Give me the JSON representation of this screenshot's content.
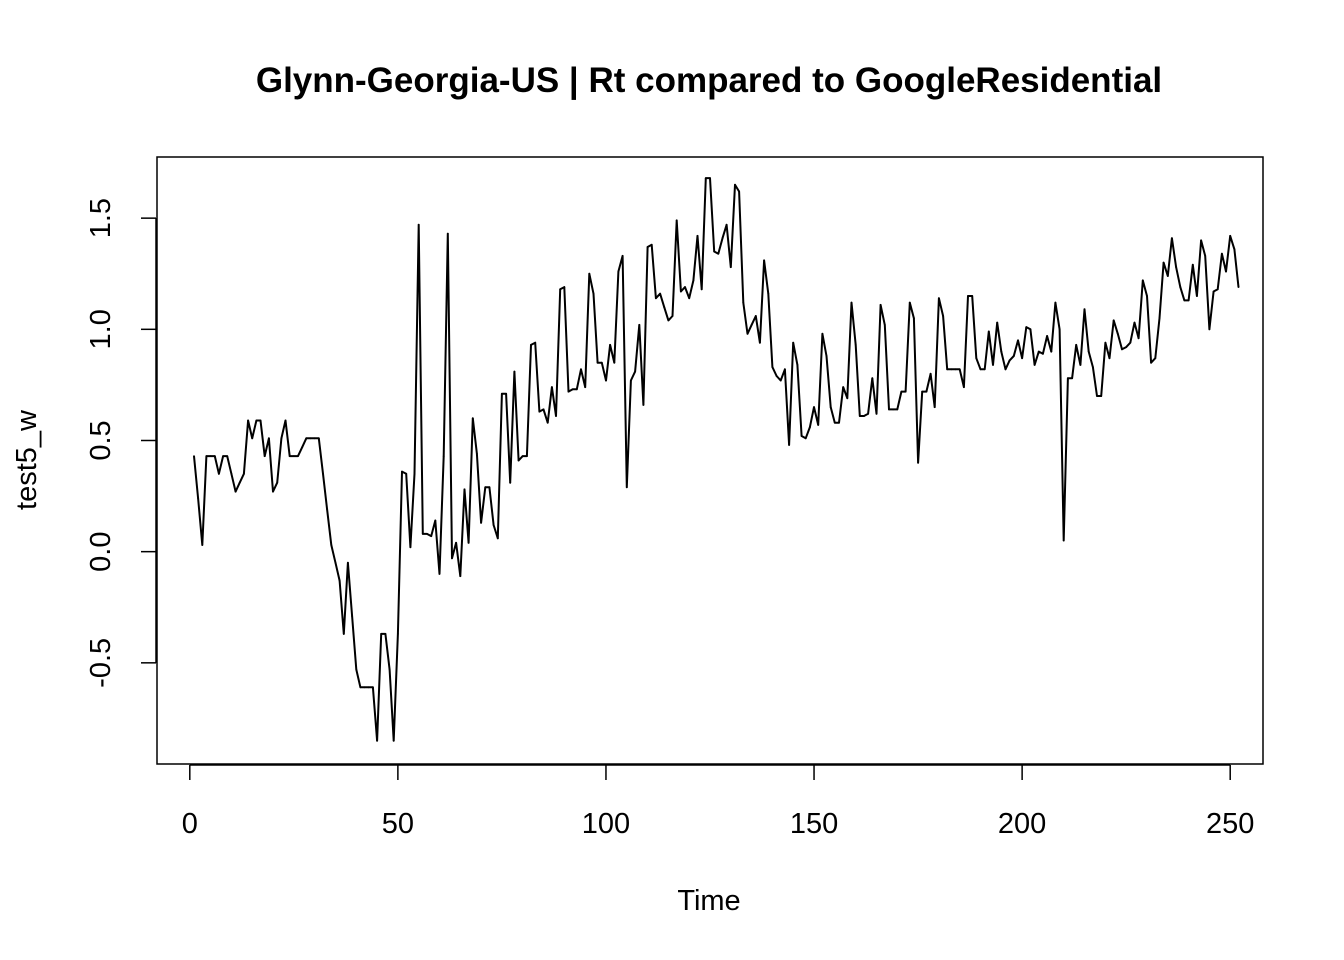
{
  "chart_data": {
    "type": "line",
    "title": "Glynn-Georgia-US | Rt compared to GoogleResidential",
    "xlabel": "Time",
    "ylabel": "test5_w",
    "xlim": [
      -7.88,
      257.88
    ],
    "ylim": [
      -0.955,
      1.775
    ],
    "x_ticks": [
      0,
      50,
      100,
      150,
      200,
      250
    ],
    "x_tick_labels": [
      "0",
      "50",
      "100",
      "150",
      "200",
      "250"
    ],
    "y_ticks": [
      -0.5,
      0.0,
      0.5,
      1.0,
      1.5
    ],
    "y_tick_labels": [
      "-0.5",
      "0.0",
      "0.5",
      "1.0",
      "1.5"
    ],
    "grid": false,
    "legend": "none",
    "line_color": "#000000",
    "x_start": 1,
    "series": [
      {
        "values": [
          0.43,
          0.24,
          0.03,
          0.43,
          0.43,
          0.43,
          0.35,
          0.43,
          0.43,
          0.35,
          0.27,
          0.31,
          0.35,
          0.59,
          0.51,
          0.59,
          0.59,
          0.43,
          0.51,
          0.27,
          0.31,
          0.51,
          0.59,
          0.43,
          0.43,
          0.43,
          0.47,
          0.51,
          0.51,
          0.51,
          0.51,
          0.35,
          0.19,
          0.03,
          -0.05,
          -0.13,
          -0.37,
          -0.05,
          -0.29,
          -0.53,
          -0.61,
          -0.61,
          -0.61,
          -0.61,
          -0.85,
          -0.37,
          -0.37,
          -0.53,
          -0.85,
          -0.37,
          0.36,
          0.35,
          0.02,
          0.35,
          1.47,
          0.08,
          0.08,
          0.07,
          0.14,
          -0.1,
          0.43,
          1.43,
          -0.03,
          0.04,
          -0.11,
          0.28,
          0.04,
          0.6,
          0.44,
          0.13,
          0.29,
          0.29,
          0.12,
          0.06,
          0.71,
          0.71,
          0.31,
          0.81,
          0.41,
          0.43,
          0.43,
          0.93,
          0.94,
          0.63,
          0.64,
          0.58,
          0.74,
          0.61,
          1.18,
          1.19,
          0.72,
          0.73,
          0.73,
          0.82,
          0.74,
          1.25,
          1.16,
          0.85,
          0.85,
          0.77,
          0.93,
          0.85,
          1.26,
          1.33,
          0.29,
          0.77,
          0.81,
          1.02,
          0.66,
          1.37,
          1.38,
          1.14,
          1.16,
          1.1,
          1.04,
          1.06,
          1.49,
          1.17,
          1.19,
          1.14,
          1.22,
          1.42,
          1.18,
          1.68,
          1.68,
          1.35,
          1.34,
          1.41,
          1.47,
          1.28,
          1.65,
          1.62,
          1.12,
          0.98,
          1.02,
          1.06,
          0.94,
          1.31,
          1.16,
          0.83,
          0.79,
          0.77,
          0.82,
          0.48,
          0.94,
          0.84,
          0.52,
          0.51,
          0.56,
          0.65,
          0.57,
          0.98,
          0.88,
          0.65,
          0.58,
          0.58,
          0.74,
          0.69,
          1.12,
          0.93,
          0.61,
          0.61,
          0.62,
          0.78,
          0.62,
          1.11,
          1.02,
          0.64,
          0.64,
          0.64,
          0.72,
          0.72,
          1.12,
          1.05,
          0.4,
          0.72,
          0.72,
          0.8,
          0.65,
          1.14,
          1.06,
          0.82,
          0.82,
          0.82,
          0.82,
          0.74,
          1.15,
          1.15,
          0.87,
          0.82,
          0.82,
          0.99,
          0.84,
          1.03,
          0.9,
          0.82,
          0.86,
          0.88,
          0.95,
          0.87,
          1.01,
          1.0,
          0.84,
          0.9,
          0.89,
          0.97,
          0.9,
          1.12,
          1.0,
          0.05,
          0.78,
          0.78,
          0.93,
          0.84,
          1.09,
          0.9,
          0.83,
          0.7,
          0.7,
          0.94,
          0.87,
          1.04,
          0.98,
          0.91,
          0.92,
          0.94,
          1.03,
          0.96,
          1.22,
          1.15,
          0.85,
          0.87,
          1.05,
          1.3,
          1.24,
          1.41,
          1.28,
          1.19,
          1.13,
          1.13,
          1.29,
          1.15,
          1.4,
          1.33,
          1.0,
          1.17,
          1.18,
          1.34,
          1.26,
          1.42,
          1.36,
          1.19
        ]
      }
    ]
  }
}
